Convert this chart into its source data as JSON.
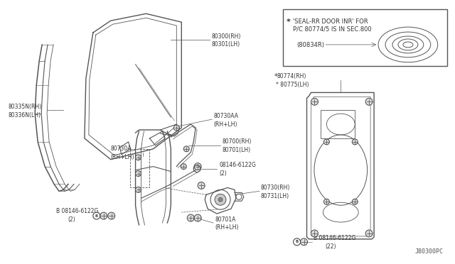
{
  "background_color": "#ffffff",
  "line_color": "#555555",
  "diagram_code": "J80300PC",
  "box_note_line1": "* 'SEAL-RR DOOR INR' FOR",
  "box_note_line2": "  P/C 80774/5 IS IN SEC.800",
  "box_part": "(80834R)",
  "labels": {
    "glass": "80300(RH)\n80301(LH)",
    "channel": "80335N(RH)\n80336N(LH)",
    "guide_aa": "80730AA\n(RH+LH)",
    "guide_a": "80730A\n(RH+LH)",
    "regulator": "80700(RH)\n80701(LH)",
    "bolt_center": "B 08146-6122G\n(2)",
    "motor": "80730(RH)\n80731(LH)",
    "motor_bolt": "80701A\n(RH+LH)",
    "bolt_left": "B 08146-6122G\n(2)",
    "panel_label": "80774(RH)\n* 80775(LH)",
    "bolt_right": "B 08146-6122G\n(22)"
  }
}
